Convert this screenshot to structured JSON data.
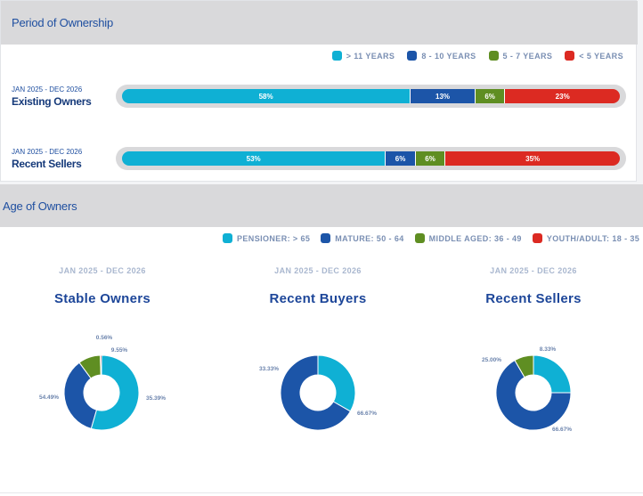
{
  "ownership": {
    "title": "Period of Ownership",
    "legend": [
      {
        "label": "> 11 YEARS",
        "color": "#0fb0d4"
      },
      {
        "label": "8 - 10 YEARS",
        "color": "#1c55a8"
      },
      {
        "label": "5 - 7 YEARS",
        "color": "#5f8e22"
      },
      {
        "label": "< 5 YEARS",
        "color": "#dc2a22"
      }
    ],
    "rows": [
      {
        "date": "JAN 2025 - DEC 2026",
        "name": "Existing Owners"
      },
      {
        "date": "JAN 2025 - DEC 2026",
        "name": "Recent Sellers"
      }
    ]
  },
  "age": {
    "title": "Age of Owners",
    "legend": [
      {
        "label": "PENSIONER: > 65",
        "color": "#0fb0d4"
      },
      {
        "label": "MATURE: 50 - 64",
        "color": "#1c55a8"
      },
      {
        "label": "MIDDLE AGED: 36 - 49",
        "color": "#5f8e22"
      },
      {
        "label": "YOUTH/ADULT: 18 - 35",
        "color": "#dc2a22"
      }
    ],
    "donuts": [
      {
        "date": "JAN 2025 - DEC 2026",
        "title": "Stable Owners"
      },
      {
        "date": "JAN 2025 - DEC 2026",
        "title": "Recent Buyers"
      },
      {
        "date": "JAN 2025 - DEC 2026",
        "title": "Recent Sellers"
      }
    ]
  },
  "chart_data": [
    {
      "type": "bar",
      "orientation": "horizontal-stacked",
      "title": "Period of Ownership",
      "categories": [
        "Existing Owners",
        "Recent Sellers"
      ],
      "series": [
        {
          "name": "> 11 YEARS",
          "values": [
            58,
            53
          ],
          "labels": [
            "58%",
            "53%"
          ],
          "color": "#0fb0d4"
        },
        {
          "name": "8 - 10 YEARS",
          "values": [
            13,
            6
          ],
          "labels": [
            "13%",
            "6%"
          ],
          "color": "#1c55a8"
        },
        {
          "name": "5 - 7 YEARS",
          "values": [
            6,
            6
          ],
          "labels": [
            "6%",
            "6%"
          ],
          "color": "#5f8e22"
        },
        {
          "name": "< 5 YEARS",
          "values": [
            23,
            35
          ],
          "labels": [
            "23%",
            "35%"
          ],
          "color": "#dc2a22"
        }
      ]
    },
    {
      "type": "pie",
      "variant": "donut",
      "title": "Stable Owners",
      "slices": [
        {
          "name": "PENSIONER: > 65",
          "value": 54.49,
          "label": "54.49%",
          "color": "#0fb0d4"
        },
        {
          "name": "MATURE: 50 - 64",
          "value": 35.39,
          "label": "35.39%",
          "color": "#1c55a8"
        },
        {
          "name": "MIDDLE AGED: 36 - 49",
          "value": 9.55,
          "label": "9.55%",
          "color": "#5f8e22"
        },
        {
          "name": "YOUTH/ADULT: 18 - 35",
          "value": 0.56,
          "label": "0.56%",
          "color": "#dc2a22"
        }
      ]
    },
    {
      "type": "pie",
      "variant": "donut",
      "title": "Recent Buyers",
      "slices": [
        {
          "name": "PENSIONER: > 65",
          "value": 33.33,
          "label": "33.33%",
          "color": "#0fb0d4"
        },
        {
          "name": "MATURE: 50 - 64",
          "value": 66.67,
          "label": "66.67%",
          "color": "#1c55a8"
        }
      ]
    },
    {
      "type": "pie",
      "variant": "donut",
      "title": "Recent Sellers",
      "slices": [
        {
          "name": "PENSIONER: > 65",
          "value": 25.0,
          "label": "25.00%",
          "color": "#0fb0d4"
        },
        {
          "name": "MATURE: 50 - 64",
          "value": 66.67,
          "label": "66.67%",
          "color": "#1c55a8"
        },
        {
          "name": "MIDDLE AGED: 36 - 49",
          "value": 8.33,
          "label": "8.33%",
          "color": "#5f8e22"
        }
      ]
    }
  ]
}
